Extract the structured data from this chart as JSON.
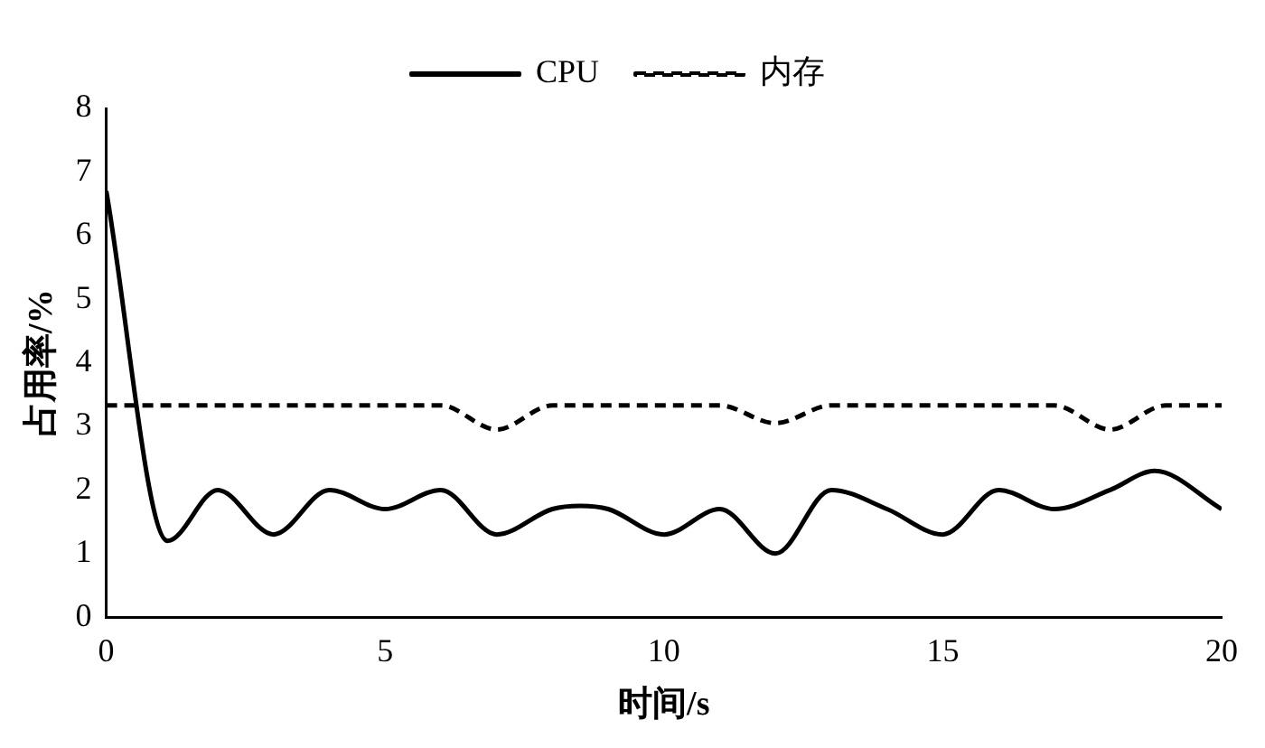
{
  "chart_data": {
    "type": "line",
    "xlabel": "时间/s",
    "ylabel": "占用率/%",
    "xlim": [
      0,
      20
    ],
    "xticks": [
      0,
      5,
      10,
      15,
      20
    ],
    "ylim": [
      0,
      8
    ],
    "yticks": [
      0,
      1,
      2,
      3,
      4,
      5,
      6,
      7,
      8
    ],
    "legend": "top",
    "grid": false,
    "marker": "none",
    "series": [
      {
        "name": "CPU",
        "color": "#000000",
        "line_style": "solid",
        "x": [
          0,
          1.1,
          2,
          3,
          4,
          5,
          6,
          7,
          8,
          8.5,
          9,
          10,
          11,
          12,
          13,
          14,
          15,
          16,
          17,
          18,
          18.8,
          20
        ],
        "values": [
          6.7,
          1.2,
          2.0,
          1.3,
          2.0,
          1.7,
          2.0,
          1.3,
          1.7,
          1.75,
          1.7,
          1.3,
          1.7,
          1.0,
          2.0,
          1.7,
          1.3,
          2.0,
          1.7,
          2.0,
          2.3,
          1.7
        ]
      },
      {
        "name": "内存",
        "color": "#000000",
        "line_style": "dashed",
        "x": [
          0,
          6,
          7,
          8,
          11,
          12,
          13,
          17,
          18,
          19,
          20
        ],
        "values": [
          3.33,
          3.33,
          2.95,
          3.33,
          3.33,
          3.05,
          3.33,
          3.33,
          2.95,
          3.33,
          3.33
        ]
      }
    ]
  }
}
